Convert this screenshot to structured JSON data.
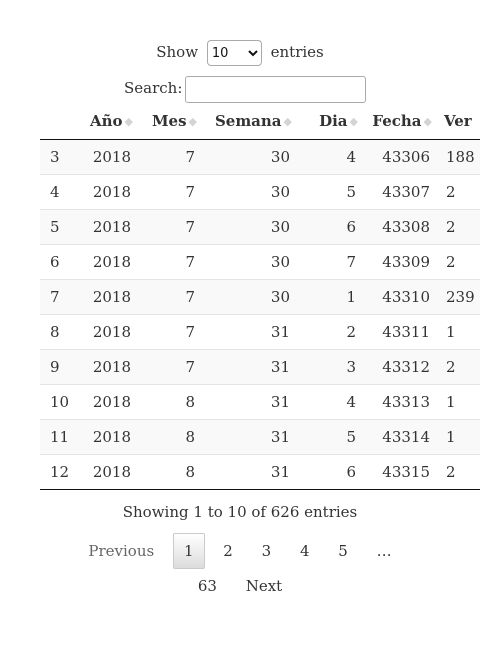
{
  "length": {
    "show": "Show",
    "selected": "10",
    "entries": "entries"
  },
  "search": {
    "label": "Search:",
    "value": ""
  },
  "table": {
    "headers": [
      "",
      "Año",
      "Mes",
      "Semana",
      "Dia",
      "Fecha",
      "Ver"
    ],
    "rows": [
      [
        "3",
        "2018",
        "7",
        "30",
        "4",
        "43306",
        "188"
      ],
      [
        "4",
        "2018",
        "7",
        "30",
        "5",
        "43307",
        "2"
      ],
      [
        "5",
        "2018",
        "7",
        "30",
        "6",
        "43308",
        "2"
      ],
      [
        "6",
        "2018",
        "7",
        "30",
        "7",
        "43309",
        "2"
      ],
      [
        "7",
        "2018",
        "7",
        "30",
        "1",
        "43310",
        "239"
      ],
      [
        "8",
        "2018",
        "7",
        "31",
        "2",
        "43311",
        "1"
      ],
      [
        "9",
        "2018",
        "7",
        "31",
        "3",
        "43312",
        "2"
      ],
      [
        "10",
        "2018",
        "8",
        "31",
        "4",
        "43313",
        "1"
      ],
      [
        "11",
        "2018",
        "8",
        "31",
        "5",
        "43314",
        "1"
      ],
      [
        "12",
        "2018",
        "8",
        "31",
        "6",
        "43315",
        "2"
      ]
    ]
  },
  "info": "Showing 1 to 10 of 626 entries",
  "pagination": {
    "previous": "Previous",
    "pages": [
      "1",
      "2",
      "3",
      "4",
      "5"
    ],
    "ellipsis": "…",
    "last": "63",
    "next": "Next",
    "current": "1"
  }
}
